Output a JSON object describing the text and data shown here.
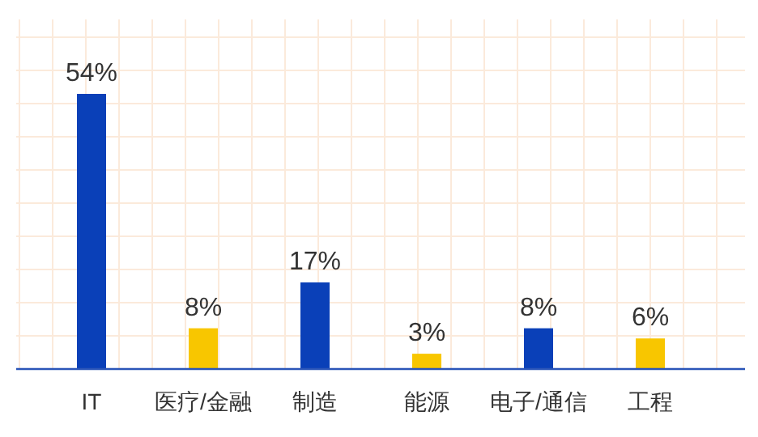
{
  "chart_data": {
    "type": "bar",
    "categories": [
      "IT",
      "医疗/金融",
      "制造",
      "能源",
      "电子/通信",
      "工程"
    ],
    "values": [
      54,
      8,
      17,
      3,
      8,
      6
    ],
    "colors": [
      "#0a40b8",
      "#f8c600",
      "#0a40b8",
      "#f8c600",
      "#0a40b8",
      "#f8c600"
    ],
    "value_labels": [
      "54%",
      "8%",
      "17%",
      "3%",
      "8%",
      "6%"
    ],
    "grid": true
  }
}
